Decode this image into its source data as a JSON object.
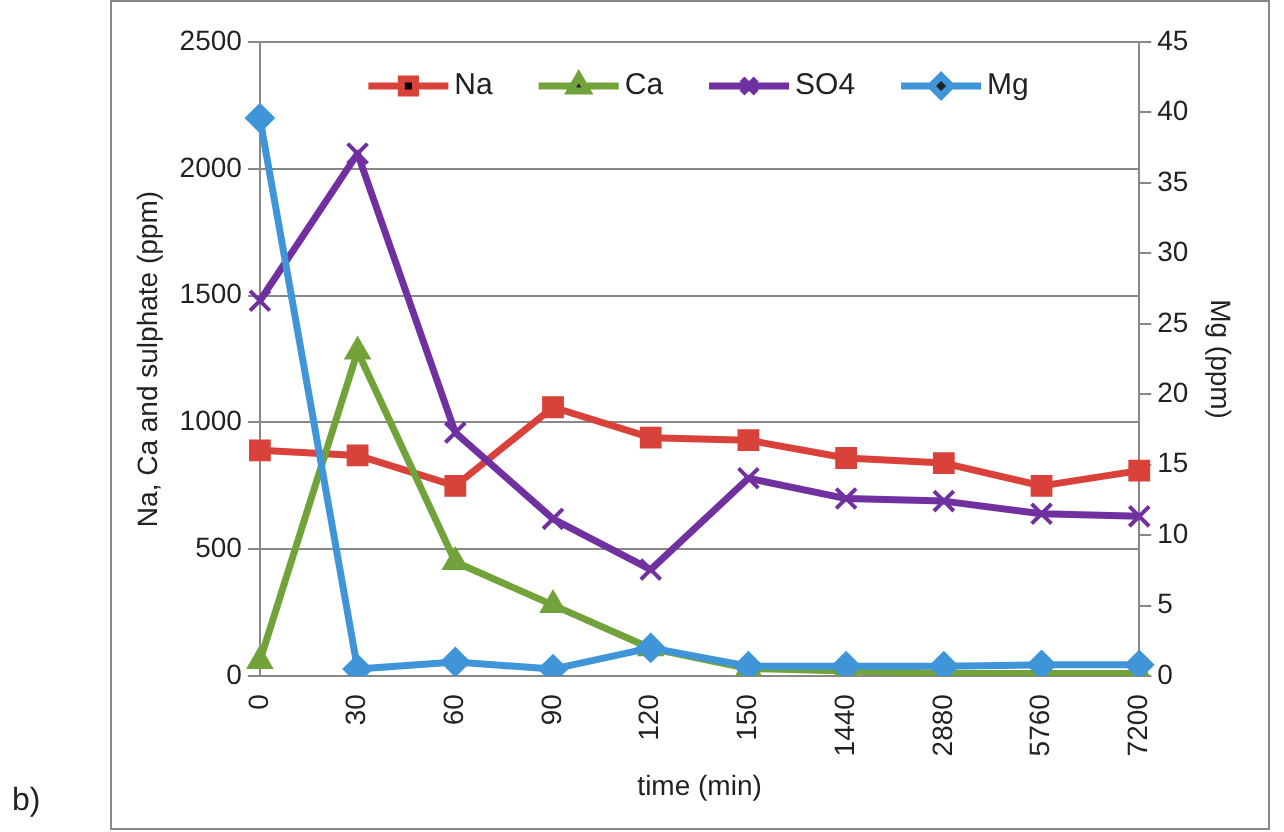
{
  "chart_data": {
    "type": "line",
    "xlabel": "time (min)",
    "ylabel": "Na, Ca and sulphate (ppm)",
    "y2label": "Mg (ppm)",
    "categories": [
      "0",
      "30",
      "60",
      "90",
      "120",
      "150",
      "1440",
      "2880",
      "5760",
      "7200"
    ],
    "series": [
      {
        "name": "Na",
        "color": "#d9423a",
        "marker": "square",
        "values": [
          890,
          870,
          750,
          1060,
          940,
          930,
          860,
          840,
          750,
          810
        ]
      },
      {
        "name": "Ca",
        "color": "#72a33a",
        "marker": "triangle",
        "values": [
          60,
          1280,
          450,
          280,
          110,
          30,
          20,
          10,
          10,
          10
        ]
      },
      {
        "name": "SO4",
        "color": "#7030a0",
        "marker": "cross",
        "values": [
          1480,
          2060,
          960,
          620,
          420,
          780,
          700,
          690,
          640,
          630
        ]
      },
      {
        "name": "Mg",
        "color": "#3f95d8",
        "marker": "diamond",
        "axis": "y2",
        "values": [
          39.6,
          0.5,
          1,
          0.5,
          2,
          0.7,
          0.7,
          0.7,
          0.8,
          0.8
        ]
      }
    ],
    "ylim": [
      0,
      2500
    ],
    "yticks": [
      0,
      500,
      1000,
      1500,
      2000,
      2500
    ],
    "y2lim": [
      0,
      45
    ],
    "y2ticks": [
      0,
      5,
      10,
      15,
      20,
      25,
      30,
      35,
      40,
      45
    ],
    "grid": "y",
    "legend": "top",
    "annotations": [
      "b)"
    ]
  }
}
